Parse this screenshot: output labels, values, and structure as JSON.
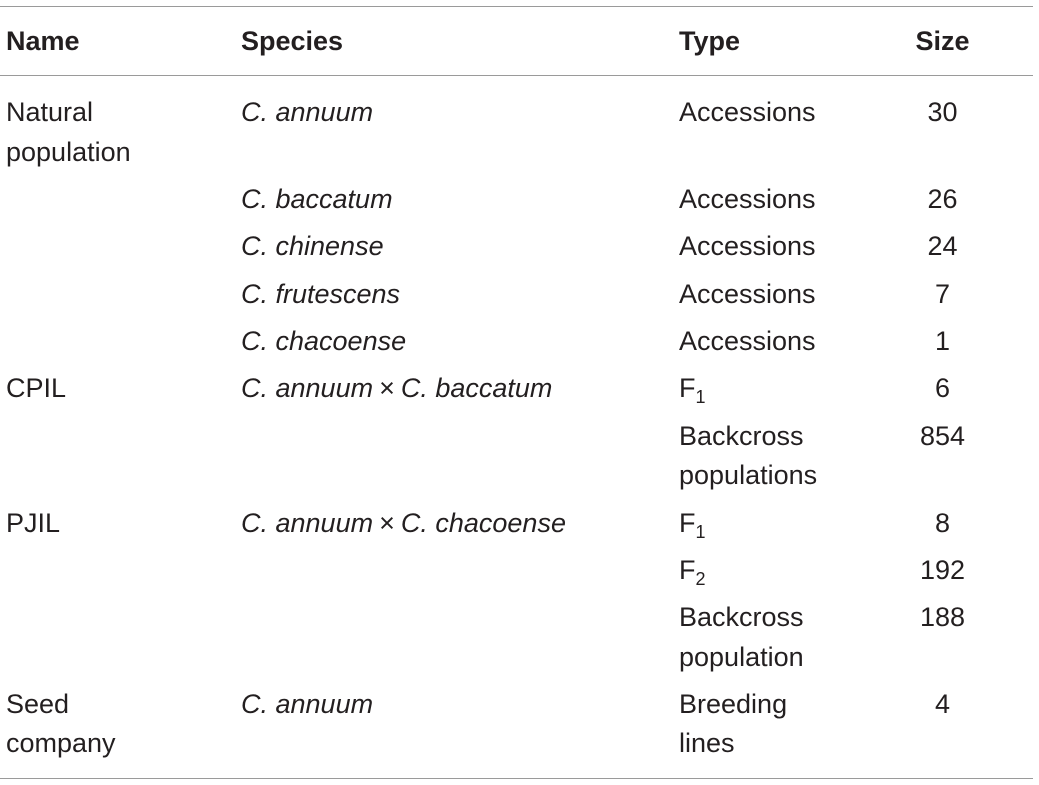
{
  "headers": {
    "name": "Name",
    "species": "Species",
    "type": "Type",
    "size": "Size"
  },
  "rows": [
    {
      "name": [
        "Natural",
        "population"
      ],
      "species": "C. annuum",
      "type": [
        "Accessions"
      ],
      "size": "30"
    },
    {
      "name": [],
      "species": "C. baccatum",
      "type": [
        "Accessions"
      ],
      "size": "26"
    },
    {
      "name": [],
      "species": "C. chinense",
      "type": [
        "Accessions"
      ],
      "size": "24"
    },
    {
      "name": [],
      "species": "C. frutescens",
      "type": [
        "Accessions"
      ],
      "size": "7"
    },
    {
      "name": [],
      "species": "C. chacoense",
      "type": [
        "Accessions"
      ],
      "size": "1"
    },
    {
      "name": [
        "CPIL"
      ],
      "species_a": "C. annuum",
      "times": "×",
      "species_b": "C. baccatum",
      "type_main": "F",
      "type_sub": "1",
      "size": "6"
    },
    {
      "name": [],
      "species": "",
      "type": [
        "Backcross",
        "populations"
      ],
      "size": "854"
    },
    {
      "name": [
        "PJIL"
      ],
      "species_a": "C. annuum",
      "times": "×",
      "species_b": "C. chacoense",
      "type_main": "F",
      "type_sub": "1",
      "size": "8"
    },
    {
      "name": [],
      "species": "",
      "type_main": "F",
      "type_sub": "2",
      "size": "192"
    },
    {
      "name": [],
      "species": "",
      "type": [
        "Backcross",
        "population"
      ],
      "size": "188"
    },
    {
      "name": [
        "Seed",
        "company"
      ],
      "species": "C. annuum",
      "type": [
        "Breeding",
        "lines"
      ],
      "size": "4"
    }
  ]
}
